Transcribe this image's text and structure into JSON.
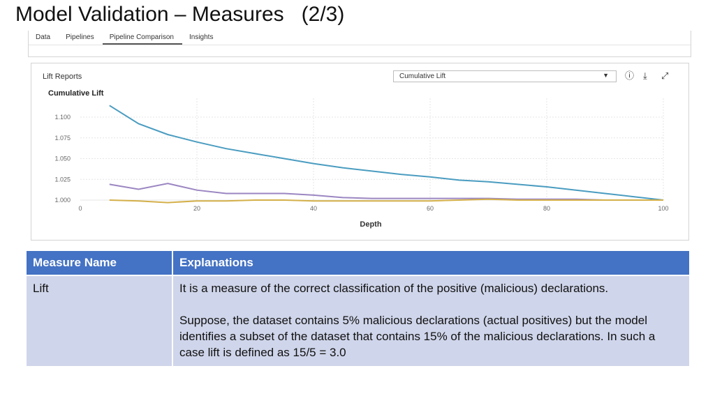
{
  "slide": {
    "title": "Model Validation – Measures   (2/3)"
  },
  "tabs": [
    {
      "label": "Data"
    },
    {
      "label": "Pipelines"
    },
    {
      "label": "Pipeline Comparison",
      "active": true
    },
    {
      "label": "Insights"
    }
  ],
  "lift_panel": {
    "label": "Lift Reports",
    "select_value": "Cumulative Lift",
    "icons": [
      "info-icon",
      "download-icon",
      "expand-icon"
    ]
  },
  "chart_data": {
    "type": "line",
    "title": "Cumulative Lift",
    "xlabel": "Depth",
    "ylabel": "",
    "xlim": [
      0,
      100
    ],
    "ylim": [
      1.0,
      1.1
    ],
    "xticks": [
      0,
      20,
      40,
      60,
      80,
      100
    ],
    "yticks": [
      1.0,
      1.025,
      1.05,
      1.075,
      1.1
    ],
    "ytick_labels": [
      "1.000",
      "1.025",
      "1.050",
      "1.075",
      "1.100"
    ],
    "grid": true,
    "series": [
      {
        "color": "#4a9cc0",
        "x": [
          5,
          10,
          15,
          20,
          25,
          30,
          35,
          40,
          45,
          50,
          55,
          60,
          65,
          70,
          75,
          80,
          85,
          90,
          95,
          100
        ],
        "y": [
          1.114,
          1.092,
          1.079,
          1.07,
          1.062,
          1.056,
          1.05,
          1.044,
          1.039,
          1.035,
          1.031,
          1.028,
          1.024,
          1.022,
          1.019,
          1.016,
          1.012,
          1.008,
          1.004,
          1.0
        ]
      },
      {
        "color": "#9b86c2",
        "x": [
          5,
          10,
          15,
          20,
          25,
          30,
          35,
          40,
          45,
          50,
          55,
          60,
          65,
          70,
          75,
          80,
          85,
          90,
          95,
          100
        ],
        "y": [
          1.019,
          1.013,
          1.02,
          1.012,
          1.008,
          1.008,
          1.008,
          1.006,
          1.003,
          1.002,
          1.002,
          1.002,
          1.002,
          1.002,
          1.001,
          1.001,
          1.001,
          1.0,
          1.0,
          1.0
        ]
      },
      {
        "color": "#d4b04a",
        "x": [
          5,
          10,
          15,
          20,
          25,
          30,
          35,
          40,
          45,
          50,
          55,
          60,
          65,
          70,
          75,
          80,
          85,
          90,
          95,
          100
        ],
        "y": [
          1.0,
          0.999,
          0.997,
          0.999,
          0.999,
          1.0,
          1.0,
          0.999,
          0.999,
          0.999,
          0.999,
          0.999,
          1.0,
          1.001,
          1.0,
          1.0,
          1.0,
          1.0,
          1.0,
          1.0
        ]
      }
    ]
  },
  "table": {
    "headers": [
      "Measure Name",
      "Explanations"
    ],
    "rows": [
      {
        "name": "Lift",
        "para1": "It is a measure of the correct classification of the positive (malicious) declarations.",
        "para2": "Suppose, the dataset contains 5% malicious declarations (actual positives) but the model identifies a subset of the dataset that contains 15% of the malicious declarations. In such a case lift is defined as 15/5 = 3.0"
      }
    ]
  }
}
